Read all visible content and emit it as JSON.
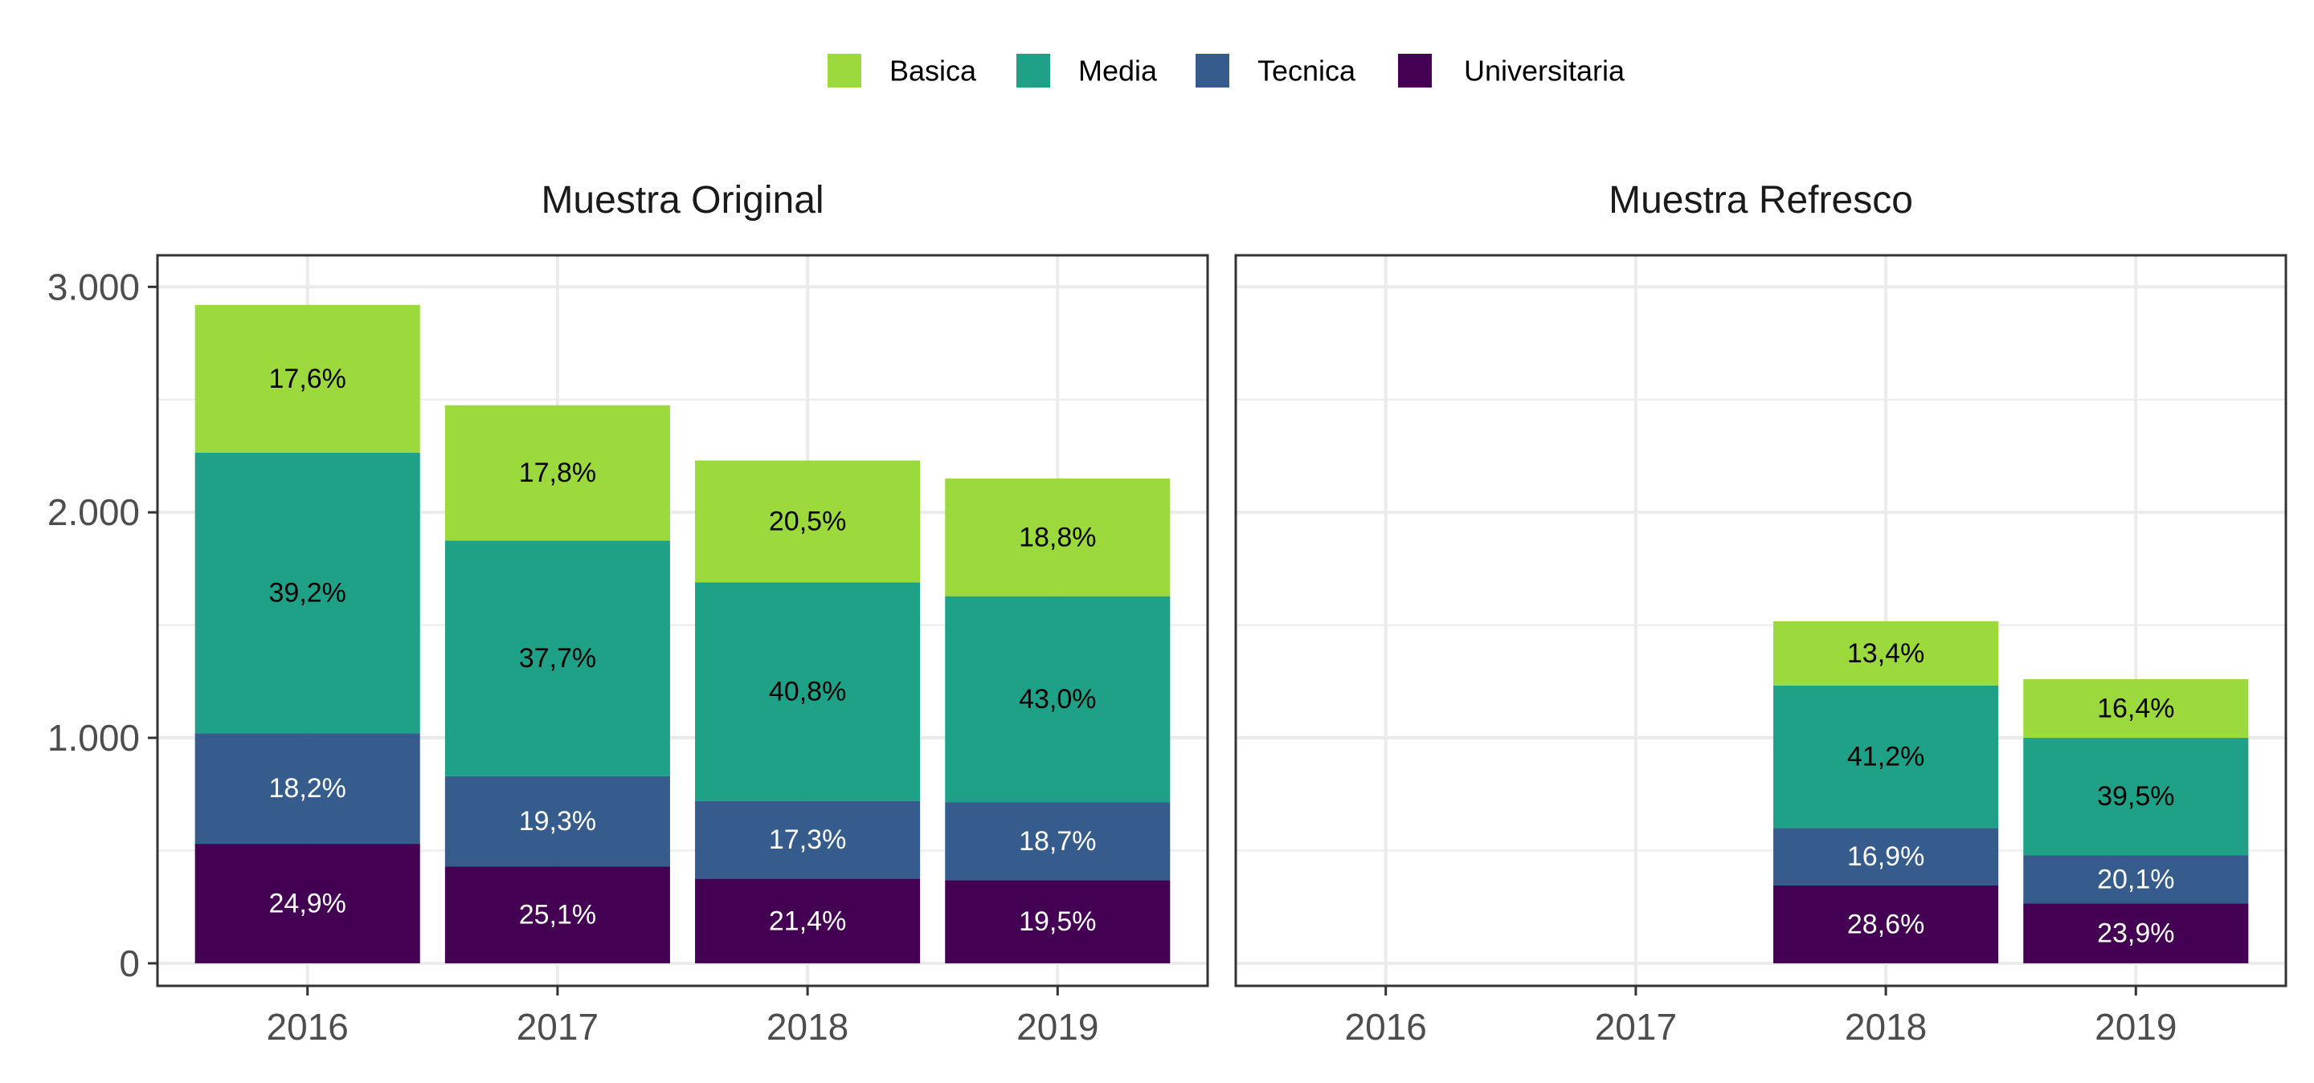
{
  "chart_data": {
    "type": "bar",
    "stacked": true,
    "legend": {
      "position": "top",
      "entries": [
        {
          "name": "Basica",
          "color": "#9bd93c"
        },
        {
          "name": "Media",
          "color": "#1fa187"
        },
        {
          "name": "Tecnica",
          "color": "#365c8d"
        },
        {
          "name": "Universitaria",
          "color": "#440154"
        }
      ]
    },
    "categories": [
      "2016",
      "2017",
      "2018",
      "2019"
    ],
    "y_ticks": [
      "0",
      "1.000",
      "2.000",
      "3.000"
    ],
    "y_tick_values": [
      0,
      1000,
      2000,
      3000
    ],
    "ylim": [
      -100,
      3140
    ],
    "grid": true,
    "stack_order_bottom_to_top": [
      "Universitaria",
      "Tecnica",
      "Media",
      "Basica"
    ],
    "panels": [
      {
        "title": "Muestra Original",
        "series": [
          {
            "name": "Universitaria",
            "values": [
              530,
              430,
              375,
              368
            ],
            "labels": [
              "24,9%",
              "25,1%",
              "21,4%",
              "19,5%"
            ],
            "label_color": "#ffffff"
          },
          {
            "name": "Tecnica",
            "values": [
              490,
              400,
              345,
              347
            ],
            "labels": [
              "18,2%",
              "19,3%",
              "17,3%",
              "18,7%"
            ],
            "label_color": "#ffffff"
          },
          {
            "name": "Media",
            "values": [
              1245,
              1045,
              970,
              913
            ],
            "labels": [
              "39,2%",
              "37,7%",
              "40,8%",
              "43,0%"
            ],
            "label_color": "#000000"
          },
          {
            "name": "Basica",
            "values": [
              655,
              600,
              540,
              522
            ],
            "labels": [
              "17,6%",
              "17,8%",
              "20,5%",
              "18,8%"
            ],
            "label_color": "#000000"
          }
        ]
      },
      {
        "title": "Muestra Refresco",
        "series": [
          {
            "name": "Universitaria",
            "values": [
              null,
              null,
              345,
              265
            ],
            "labels": [
              "",
              "",
              "28,6%",
              "23,9%"
            ],
            "label_color": "#ffffff"
          },
          {
            "name": "Tecnica",
            "values": [
              null,
              null,
              255,
              215
            ],
            "labels": [
              "",
              "",
              "16,9%",
              "20,1%"
            ],
            "label_color": "#ffffff"
          },
          {
            "name": "Media",
            "values": [
              null,
              null,
              632,
              520
            ],
            "labels": [
              "",
              "",
              "41,2%",
              "39,5%"
            ],
            "label_color": "#000000"
          },
          {
            "name": "Basica",
            "values": [
              null,
              null,
              285,
              260
            ],
            "labels": [
              "",
              "",
              "13,4%",
              "16,4%"
            ],
            "label_color": "#000000"
          }
        ]
      }
    ]
  }
}
